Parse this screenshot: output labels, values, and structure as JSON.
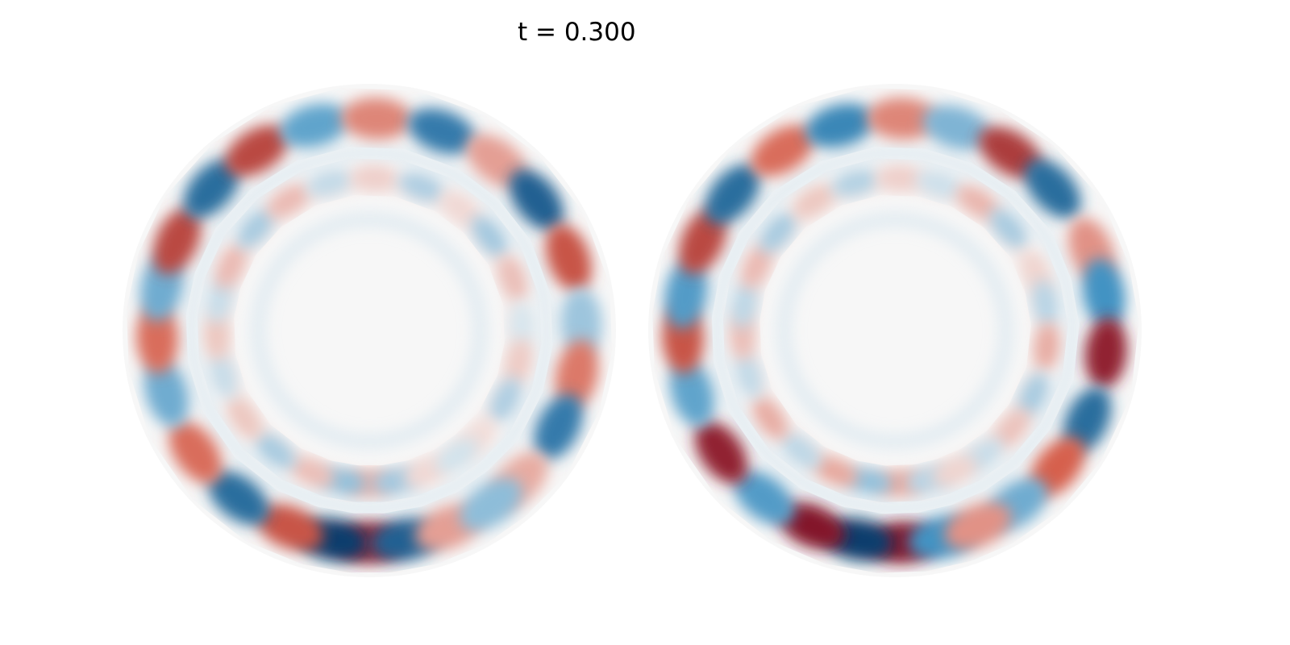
{
  "figure": {
    "title": "t = 0.300",
    "colormap": {
      "negative": "#053061",
      "mid_low": "#4393c3",
      "center": "#f7f7f7",
      "mid_high": "#d6604d",
      "positive": "#67001f"
    },
    "panels": [
      {
        "name": "left-disk",
        "blobs": [
          {
            "angle_deg": 90,
            "value": 0.85
          },
          {
            "angle_deg": 100,
            "value": -0.95
          },
          {
            "angle_deg": 112,
            "value": 0.65
          },
          {
            "angle_deg": 80,
            "value": -0.8
          },
          {
            "angle_deg": 68,
            "value": 0.35
          },
          {
            "angle_deg": 128,
            "value": -0.75
          },
          {
            "angle_deg": 145,
            "value": 0.55
          },
          {
            "angle_deg": 163,
            "value": -0.45
          },
          {
            "angle_deg": 178,
            "value": 0.55
          },
          {
            "angle_deg": 192,
            "value": -0.45
          },
          {
            "angle_deg": 205,
            "value": 0.7
          },
          {
            "angle_deg": 222,
            "value": -0.75
          },
          {
            "angle_deg": 238,
            "value": 0.7
          },
          {
            "angle_deg": 255,
            "value": -0.5
          },
          {
            "angle_deg": 272,
            "value": 0.45
          },
          {
            "angle_deg": 290,
            "value": -0.7
          },
          {
            "angle_deg": 307,
            "value": 0.35
          },
          {
            "angle_deg": 322,
            "value": -0.8
          },
          {
            "angle_deg": 340,
            "value": 0.65
          },
          {
            "angle_deg": 358,
            "value": -0.3
          },
          {
            "angle_deg": 12,
            "value": 0.5
          },
          {
            "angle_deg": 27,
            "value": -0.7
          },
          {
            "angle_deg": 45,
            "value": 0.3
          },
          {
            "angle_deg": 55,
            "value": -0.35
          }
        ]
      },
      {
        "name": "right-disk",
        "blobs": [
          {
            "angle_deg": 88,
            "value": 0.9
          },
          {
            "angle_deg": 100,
            "value": -0.95
          },
          {
            "angle_deg": 113,
            "value": 0.9
          },
          {
            "angle_deg": 77,
            "value": -0.6
          },
          {
            "angle_deg": 128,
            "value": -0.55
          },
          {
            "angle_deg": 145,
            "value": 0.85
          },
          {
            "angle_deg": 163,
            "value": -0.5
          },
          {
            "angle_deg": 178,
            "value": 0.65
          },
          {
            "angle_deg": 190,
            "value": -0.55
          },
          {
            "angle_deg": 205,
            "value": 0.7
          },
          {
            "angle_deg": 220,
            "value": -0.75
          },
          {
            "angle_deg": 238,
            "value": 0.55
          },
          {
            "angle_deg": 255,
            "value": -0.65
          },
          {
            "angle_deg": 272,
            "value": 0.45
          },
          {
            "angle_deg": 287,
            "value": -0.4
          },
          {
            "angle_deg": 303,
            "value": 0.75
          },
          {
            "angle_deg": 318,
            "value": -0.75
          },
          {
            "angle_deg": 338,
            "value": 0.4
          },
          {
            "angle_deg": 350,
            "value": -0.6
          },
          {
            "angle_deg": 6,
            "value": 0.85
          },
          {
            "angle_deg": 25,
            "value": -0.75
          },
          {
            "angle_deg": 40,
            "value": 0.6
          },
          {
            "angle_deg": 55,
            "value": -0.45
          },
          {
            "angle_deg": 67,
            "value": 0.4
          }
        ]
      }
    ]
  }
}
